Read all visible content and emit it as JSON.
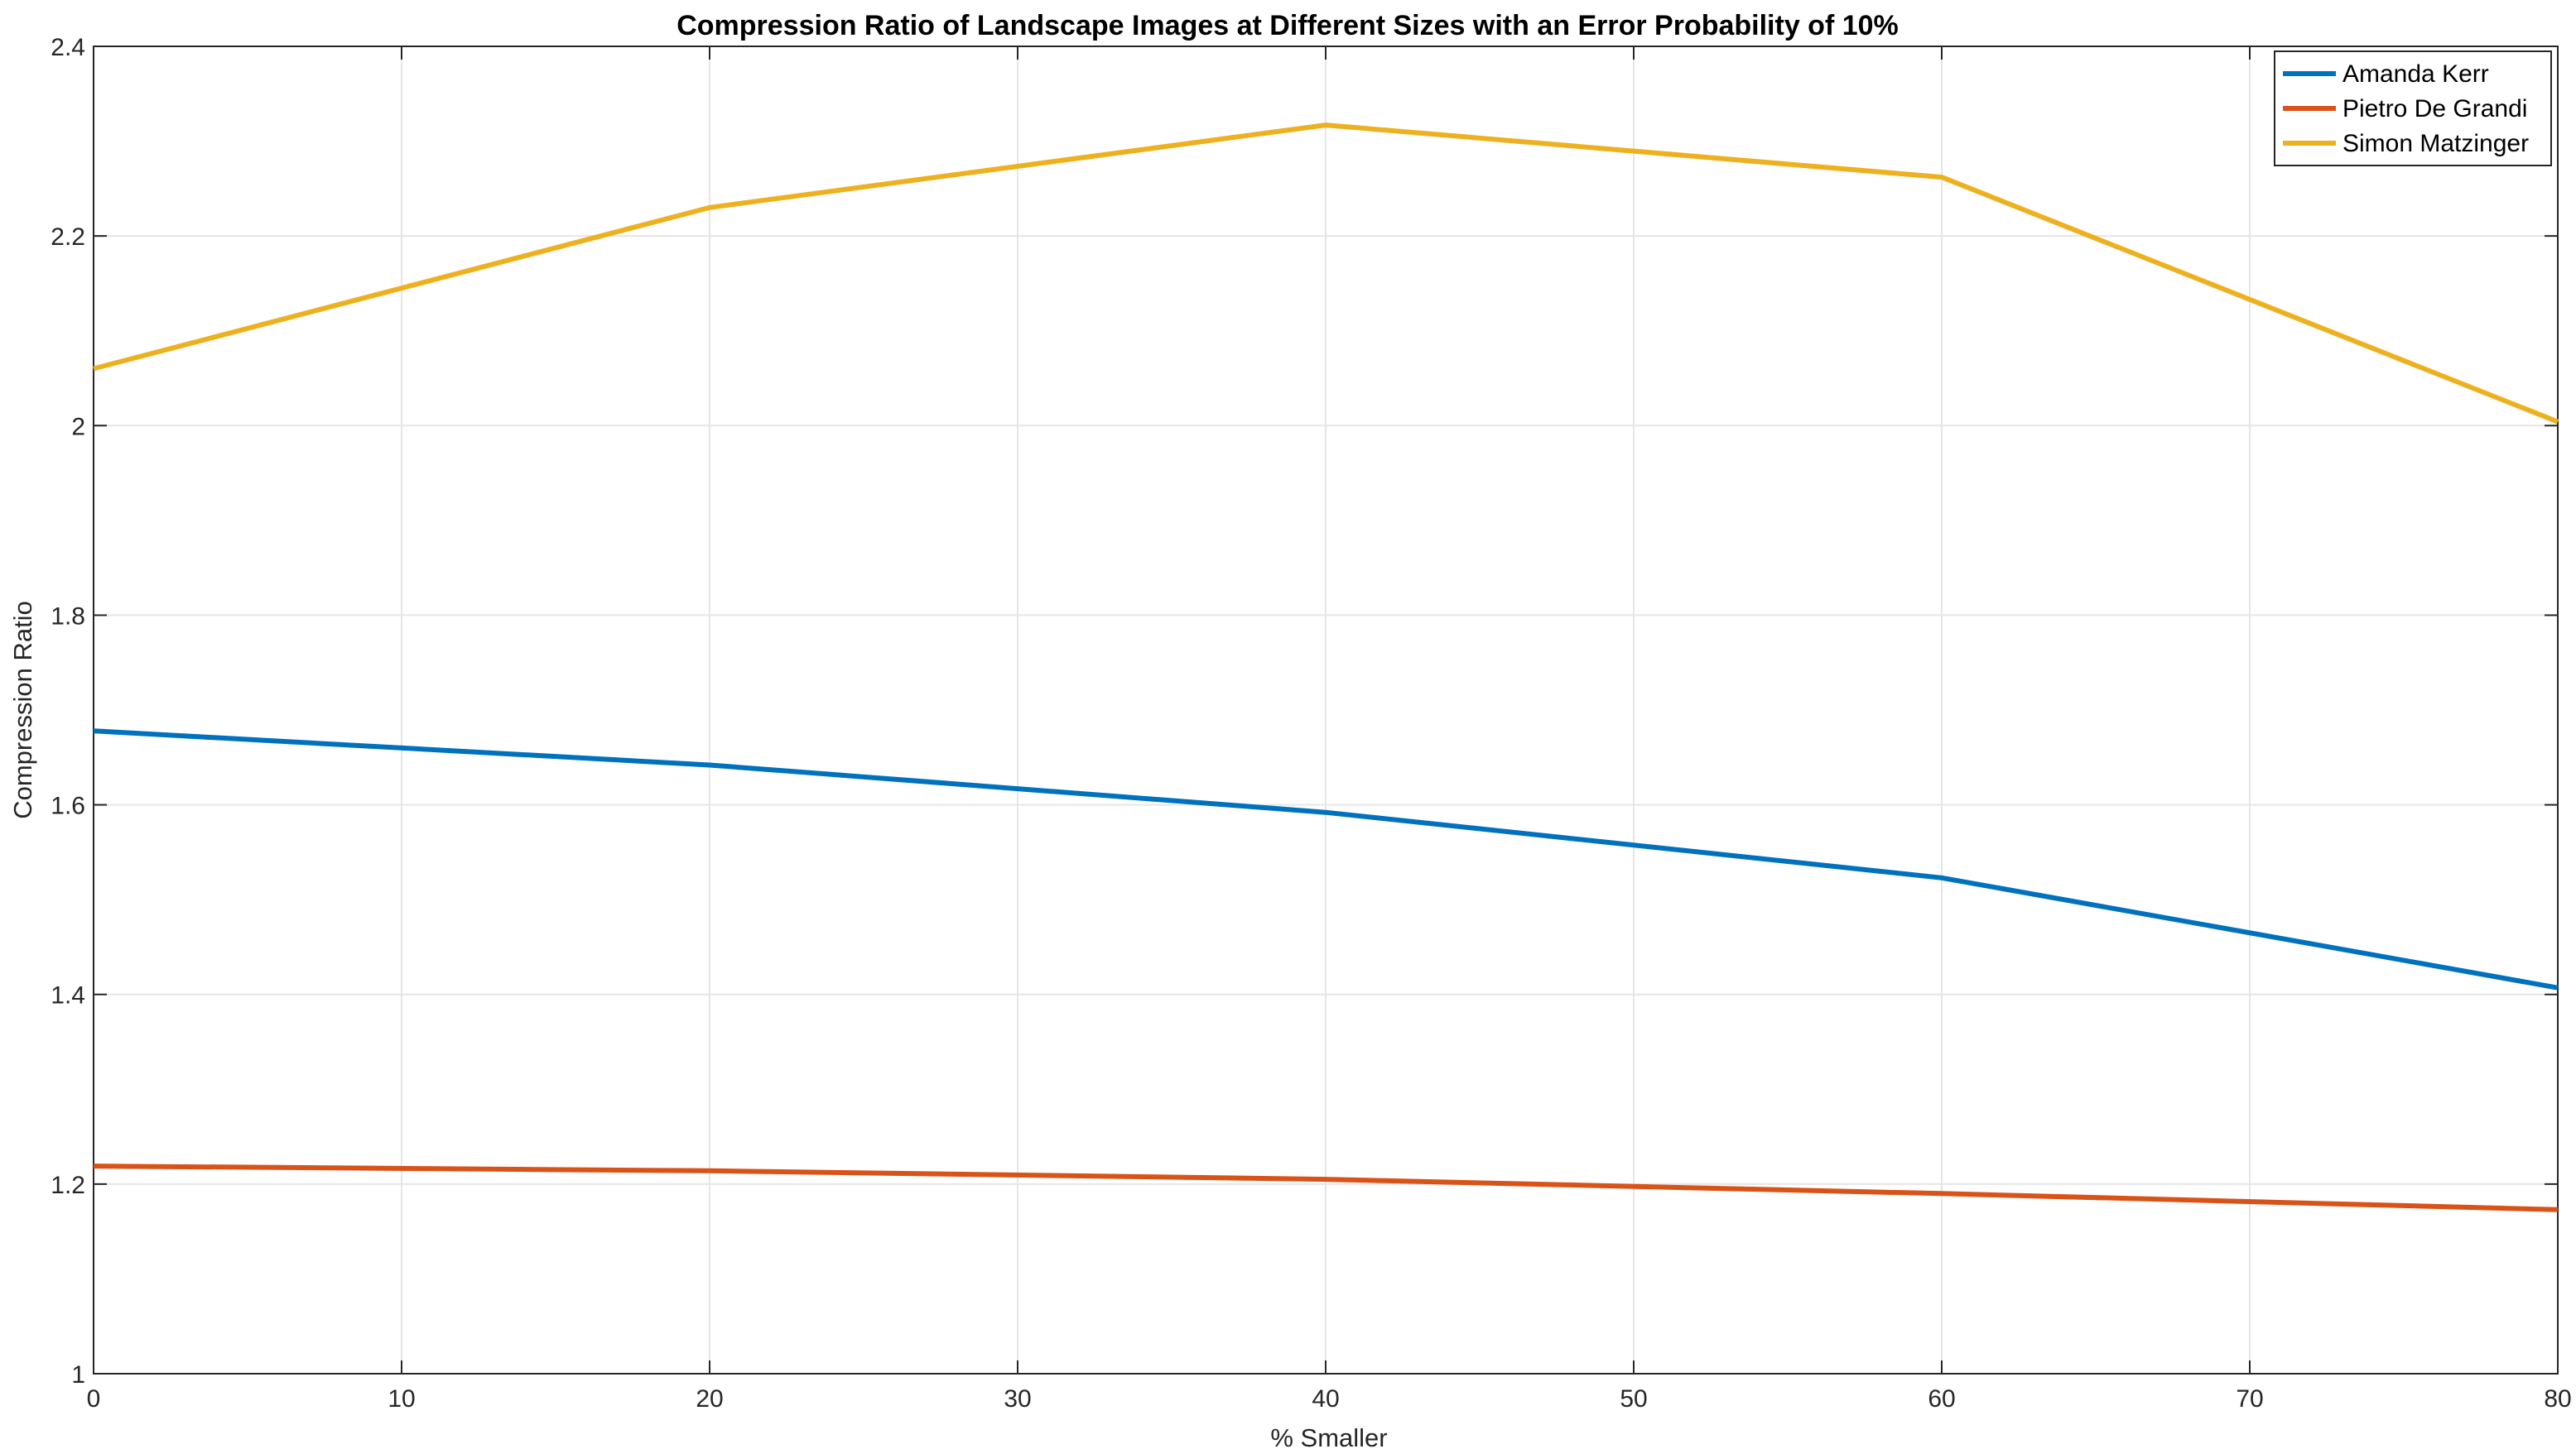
{
  "chart_data": {
    "type": "line",
    "title": "Compression Ratio of Landscape Images at Different Sizes with an Error Probability of 10%",
    "xlabel": "% Smaller",
    "ylabel": "Compression Ratio",
    "xlim": [
      0,
      80
    ],
    "ylim": [
      1,
      2.4
    ],
    "xticks": [
      0,
      10,
      20,
      30,
      40,
      50,
      60,
      70,
      80
    ],
    "yticks": [
      1,
      1.2,
      1.4,
      1.6,
      1.8,
      2,
      2.2,
      2.4
    ],
    "xtick_labels": [
      "0",
      "10",
      "20",
      "30",
      "40",
      "50",
      "60",
      "70",
      "80"
    ],
    "ytick_labels": [
      "1",
      "1.2",
      "1.4",
      "1.6",
      "1.8",
      "2",
      "2.2",
      "2.4"
    ],
    "grid": true,
    "legend_position": "top-right",
    "x": [
      0,
      20,
      40,
      60,
      80
    ],
    "series": [
      {
        "name": "Amanda Kerr",
        "color": "#0072BD",
        "values": [
          1.678,
          1.642,
          1.592,
          1.523,
          1.407
        ]
      },
      {
        "name": "Pietro De Grandi",
        "color": "#D95319",
        "values": [
          1.219,
          1.214,
          1.205,
          1.19,
          1.173
        ]
      },
      {
        "name": "Simon Matzinger",
        "color": "#EDB120",
        "values": [
          2.06,
          2.23,
          2.317,
          2.262,
          2.004
        ]
      }
    ]
  }
}
